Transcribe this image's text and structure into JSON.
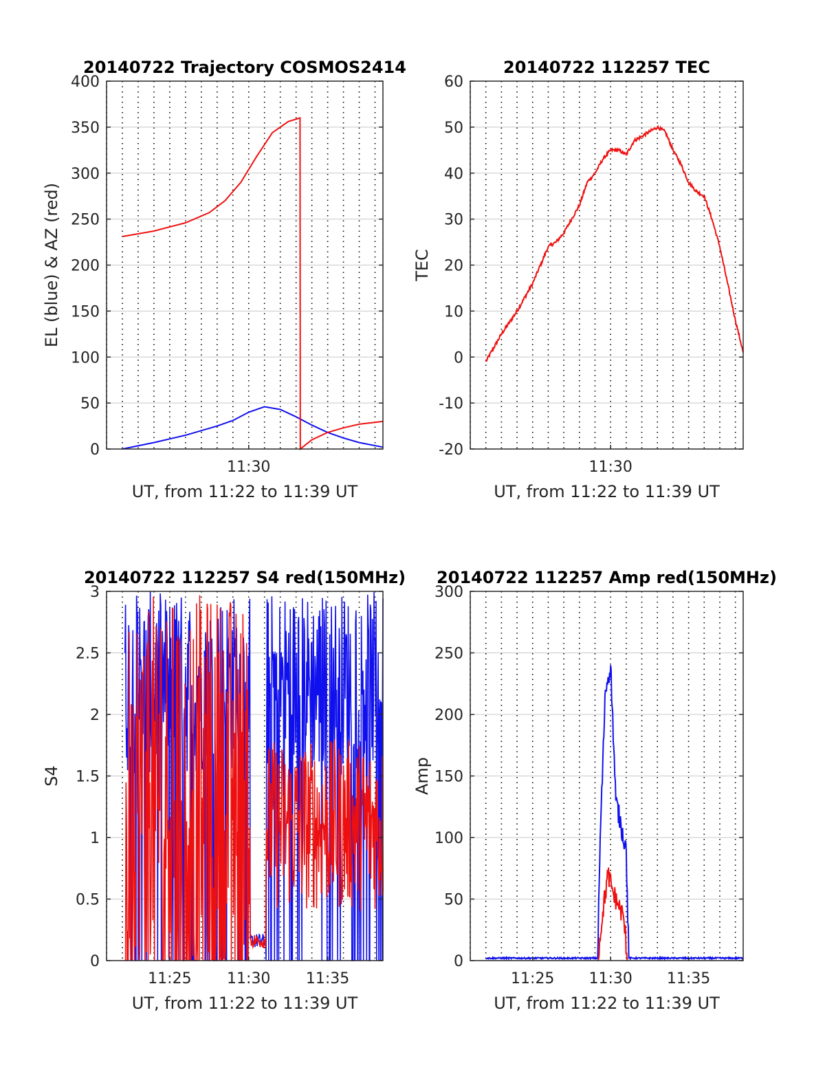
{
  "colors": {
    "el": "#1010ee",
    "az": "#ee1010",
    "grid_major": "#c8c8c8",
    "grid_minor": "#000000",
    "frame": "#262626"
  },
  "chart_data": [
    {
      "type": "line",
      "title": "20140722 Trajectory COSMOS2414",
      "xlabel": "UT, from 11:22 to 11:39 UT",
      "ylabel": "EL (blue) & AZ (red)",
      "xlim": [
        "11:21:00",
        "11:38:30"
      ],
      "ylim": [
        0,
        400
      ],
      "yticks": [
        "0",
        "50",
        "100",
        "150",
        "200",
        "250",
        "300",
        "350",
        "400"
      ],
      "xticks": [
        "11:30"
      ],
      "grid": "y major, x minor dotted",
      "series": [
        {
          "color_key": "el",
          "x": [
            "11:22:00",
            "11:24:00",
            "11:26:00",
            "11:28:00",
            "11:29:00",
            "11:30:00",
            "11:31:00",
            "11:32:00",
            "11:33:00",
            "11:34:00",
            "11:35:00",
            "11:36:00",
            "11:37:00",
            "11:38:30"
          ],
          "y": [
            0,
            7,
            15,
            25,
            31,
            40,
            46,
            43,
            35,
            26,
            18,
            12,
            7,
            2
          ]
        },
        {
          "color_key": "az",
          "x": [
            "11:22:00",
            "11:24:00",
            "11:26:00",
            "11:27:30",
            "11:28:30",
            "11:29:30",
            "11:30:30",
            "11:31:30",
            "11:32:30",
            "11:33:15",
            "11:33:16",
            "11:34:00",
            "11:35:00",
            "11:36:00",
            "11:37:00",
            "11:38:30"
          ],
          "y": [
            231,
            237,
            246,
            257,
            270,
            290,
            318,
            344,
            356,
            360,
            0,
            10,
            18,
            23,
            27,
            30
          ]
        }
      ]
    },
    {
      "type": "line",
      "title": "20140722 112257 TEC",
      "xlabel": "UT, from 11:22 to 11:39 UT",
      "ylabel": "TEC",
      "xlim": [
        "11:21:00",
        "11:38:30"
      ],
      "ylim": [
        -20,
        60
      ],
      "yticks": [
        "-20",
        "-10",
        "0",
        "10",
        "20",
        "30",
        "40",
        "50",
        "60"
      ],
      "xticks": [
        "11:30"
      ],
      "series": [
        {
          "color_key": "az",
          "x": [
            "11:22:00",
            "11:23:00",
            "11:24:00",
            "11:25:00",
            "11:26:00",
            "11:26:30",
            "11:27:00",
            "11:27:30",
            "11:28:00",
            "11:28:30",
            "11:29:00",
            "11:29:30",
            "11:30:00",
            "11:30:30",
            "11:31:00",
            "11:31:30",
            "11:32:00",
            "11:32:30",
            "11:33:00",
            "11:33:30",
            "11:34:00",
            "11:34:30",
            "11:35:00",
            "11:35:30",
            "11:36:00",
            "11:36:30",
            "11:37:00",
            "11:37:30",
            "11:38:00",
            "11:38:30"
          ],
          "y": [
            -1,
            5,
            10,
            16,
            24,
            25,
            27,
            30,
            33,
            38,
            40,
            43,
            45,
            45,
            44,
            47,
            48,
            49,
            50,
            49,
            45,
            42,
            38,
            36,
            35,
            30,
            24,
            16,
            8,
            1
          ]
        }
      ]
    },
    {
      "type": "line",
      "title": "20140722 112257 S4 red(150MHz)",
      "xlabel": "UT, from 11:22 to 11:39 UT",
      "ylabel": "S4",
      "xlim": [
        "11:21:00",
        "11:38:30"
      ],
      "ylim": [
        0,
        3
      ],
      "yticks": [
        "0",
        "0.5",
        "1",
        "1.5",
        "2",
        "2.5",
        "3"
      ],
      "xticks": [
        "11:25",
        "11:30",
        "11:35"
      ],
      "series": [
        {
          "color_key": "el",
          "noisy": true
        },
        {
          "color_key": "az",
          "noisy": true
        }
      ]
    },
    {
      "type": "line",
      "title": "20140722 112257 Amp red(150MHz)",
      "xlabel": "UT, from 11:22 to 11:39 UT",
      "ylabel": "Amp",
      "xlim": [
        "11:21:00",
        "11:38:30"
      ],
      "ylim": [
        0,
        300
      ],
      "yticks": [
        "0",
        "50",
        "100",
        "150",
        "200",
        "250",
        "300"
      ],
      "xticks": [
        "11:25",
        "11:30",
        "11:35"
      ],
      "series": [
        {
          "color_key": "el",
          "x": [
            "11:22:00",
            "11:29:10",
            "11:29:20",
            "11:29:40",
            "11:30:00",
            "11:30:20",
            "11:30:40",
            "11:31:00",
            "11:31:10",
            "11:31:30",
            "11:38:30"
          ],
          "y": [
            2,
            2,
            100,
            220,
            240,
            130,
            110,
            90,
            2,
            2,
            2
          ]
        },
        {
          "color_key": "az",
          "x": [
            "11:29:10",
            "11:29:30",
            "11:29:50",
            "11:30:10",
            "11:30:30",
            "11:30:50",
            "11:31:05"
          ],
          "y": [
            0,
            40,
            70,
            55,
            45,
            35,
            0
          ]
        }
      ]
    }
  ]
}
